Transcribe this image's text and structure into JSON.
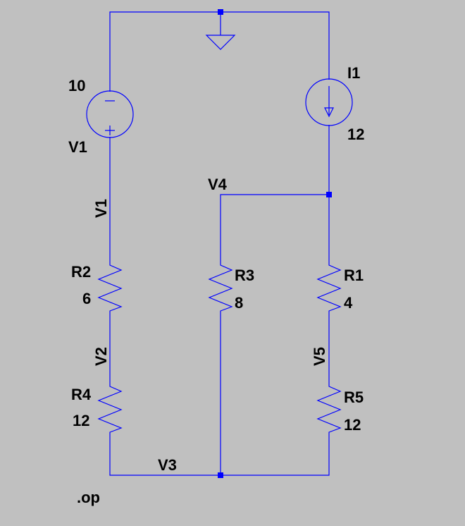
{
  "schematic": {
    "directive": ".op",
    "colors": {
      "background": "#c0c0c0",
      "wire": "#0000ff",
      "text": "#000000"
    },
    "components": {
      "V1": {
        "name": "V1",
        "value": "10",
        "type": "voltage-source"
      },
      "I1": {
        "name": "I1",
        "value": "12",
        "type": "current-source"
      },
      "R1": {
        "name": "R1",
        "value": "4",
        "type": "resistor"
      },
      "R2": {
        "name": "R2",
        "value": "6",
        "type": "resistor"
      },
      "R3": {
        "name": "R3",
        "value": "8",
        "type": "resistor"
      },
      "R4": {
        "name": "R4",
        "value": "12",
        "type": "resistor"
      },
      "R5": {
        "name": "R5",
        "value": "12",
        "type": "resistor"
      }
    },
    "net_labels": {
      "v1": "V1",
      "v2": "V2",
      "v3": "V3",
      "v4": "V4",
      "v5": "V5"
    },
    "ground_symbol": "ground-icon"
  }
}
